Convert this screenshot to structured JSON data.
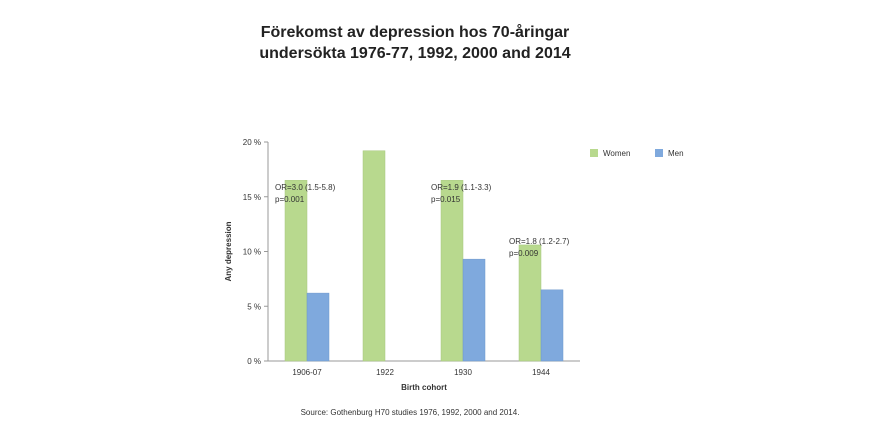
{
  "chart_data": {
    "type": "bar",
    "title": [
      "Förekomst av depression hos 70-åringar",
      "undersökta 1976-77, 1992, 2000 and 2014"
    ],
    "xlabel": "Birth cohort",
    "ylabel": "Any depression",
    "ylim": [
      0,
      20
    ],
    "yticks": [
      "0 %",
      "5 %",
      "10 %",
      "15 %",
      "20 %"
    ],
    "categories": [
      "1906-07",
      "1922",
      "1930",
      "1944"
    ],
    "series": [
      {
        "name": "Women",
        "color": "#b8d98e",
        "values": [
          16.5,
          19.2,
          16.5,
          10.6
        ]
      },
      {
        "name": "Men",
        "color": "#7fa9dd",
        "values": [
          6.2,
          null,
          9.3,
          6.5
        ]
      }
    ],
    "annotations": [
      {
        "category": "1906-07",
        "lines": [
          "OR=3.0 (1.5-5.8)",
          "p=0.001"
        ]
      },
      {
        "category": "1930",
        "lines": [
          "OR=1.9 (1.1-3.3)",
          "p=0.015"
        ]
      },
      {
        "category": "1944",
        "lines": [
          "OR=1.8 (1.2-2.7)",
          "p=0.009"
        ]
      }
    ],
    "legend": "top-right",
    "grid": false
  },
  "source": "Source: Gothenburg H70 studies 1976, 1992, 2000 and 2014."
}
